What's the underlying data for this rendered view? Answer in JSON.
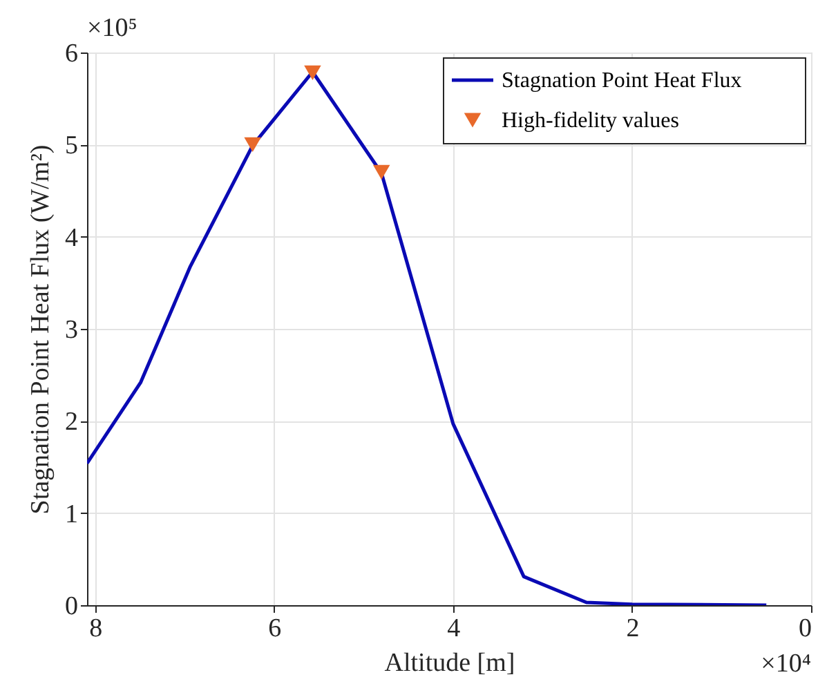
{
  "chart_data": {
    "type": "line",
    "xlabel": "Altitude [m]",
    "ylabel": "Stagnation Point Heat Flux (W/m²)",
    "xlim": [
      8.09,
      0
    ],
    "ylim": [
      0,
      6
    ],
    "xticks": [
      8,
      6,
      4,
      2,
      0
    ],
    "yticks": [
      0,
      1,
      2,
      3,
      4,
      5,
      6
    ],
    "annotations": [
      "×10⁵",
      "×10⁴"
    ],
    "grid": true,
    "legend": "top right",
    "series": [
      {
        "name": "Stagnation Point Heat Flux",
        "color": "#0a0ab4",
        "line_style": "solid",
        "marker": "none",
        "x": [
          8.09,
          7.49,
          6.94,
          6.24,
          5.57,
          4.8,
          4.0,
          3.21,
          2.51,
          2.0,
          0.5
        ],
        "values": [
          1.54,
          2.42,
          3.67,
          4.99,
          5.79,
          4.69,
          1.97,
          0.31,
          0.03,
          0.01,
          0
        ]
      },
      {
        "name": "High-fidelity values",
        "type": "scatter",
        "color": "#e8692a",
        "marker": "triangle",
        "x": [
          6.24,
          5.57,
          4.8
        ],
        "values": [
          5.0,
          5.78,
          4.7
        ]
      }
    ]
  }
}
